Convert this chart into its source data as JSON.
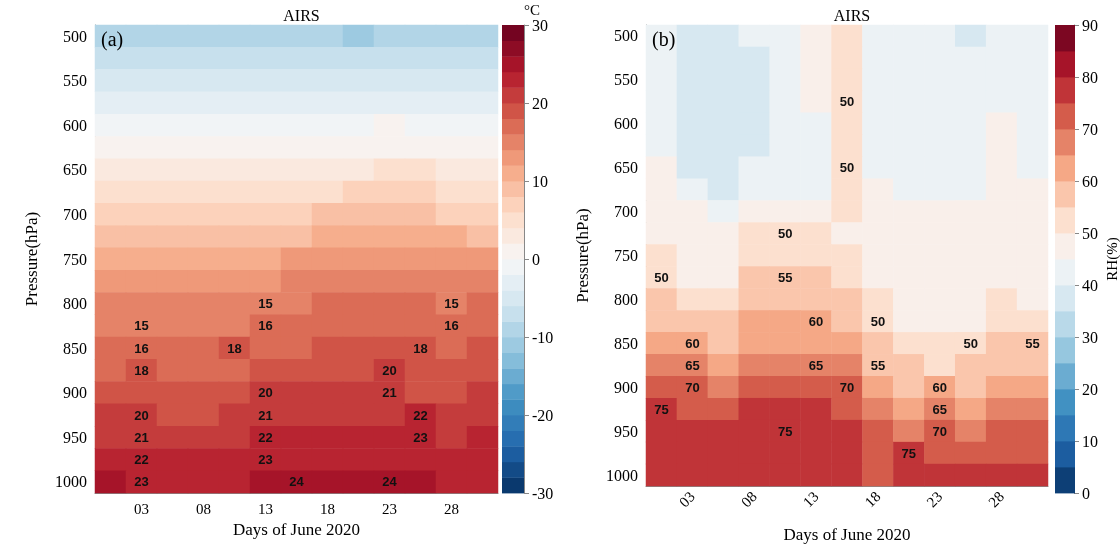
{
  "chart_data": [
    {
      "type": "heatmap",
      "title": "AIRS",
      "xlabel": "Days of June 2020",
      "ylabel": "Pressure(hPa)",
      "clabel": "°C",
      "annotations": [
        "(a)"
      ],
      "categories": [
        null,
        "03",
        null,
        "08",
        null,
        "13",
        null,
        "18",
        null,
        "23",
        null,
        "28",
        null
      ],
      "y_categories": [
        "500",
        null,
        "550",
        null,
        "600",
        null,
        "650",
        null,
        "700",
        null,
        "750",
        null,
        "800",
        null,
        "850",
        null,
        "900",
        null,
        "950",
        null,
        "1000"
      ],
      "clim": [
        -30,
        30
      ],
      "cticks": [
        -30,
        -20,
        -10,
        0,
        10,
        20,
        30
      ],
      "cells": [
        [
          -9,
          -9,
          -9,
          -9,
          -10,
          -10,
          -10,
          -10,
          -11,
          -10,
          -10,
          -9,
          -9
        ],
        [
          -7,
          -7,
          -7,
          -7,
          -8,
          -8,
          -8,
          -8,
          -8,
          -8,
          -7,
          -7,
          -7
        ],
        [
          -5,
          -5,
          -5,
          -5,
          -5,
          -6,
          -6,
          -6,
          -6,
          -5,
          -5,
          -5,
          -5
        ],
        [
          -3,
          -3,
          -3,
          -3,
          -3,
          -3,
          -3,
          -3,
          -3,
          -3,
          -3,
          -3,
          -3
        ],
        [
          -1,
          -1,
          -1,
          -1,
          -1,
          -1,
          -1,
          -1,
          -1,
          0,
          -1,
          -1,
          -1
        ],
        [
          1,
          1,
          1,
          1,
          1,
          1,
          1,
          1,
          1,
          1,
          1,
          1,
          1
        ],
        [
          3,
          3,
          3,
          3,
          3,
          3,
          3,
          3,
          3,
          4,
          4,
          3,
          3
        ],
        [
          5,
          5,
          5,
          5,
          5,
          5,
          5,
          5,
          6,
          6,
          6,
          5,
          5
        ],
        [
          7,
          7,
          7,
          7,
          7,
          7,
          7,
          8,
          8,
          8,
          8,
          7,
          7
        ],
        [
          9,
          9,
          9,
          9,
          9,
          9,
          9,
          10,
          10,
          10,
          10,
          10,
          9
        ],
        [
          11,
          11,
          11,
          11,
          11,
          11,
          12,
          12,
          12,
          13,
          12,
          12,
          12
        ],
        [
          13,
          13,
          13,
          13,
          13,
          13,
          14,
          14,
          14,
          15,
          14,
          14,
          14
        ],
        [
          14,
          14,
          14,
          14,
          14,
          15,
          15,
          16,
          16,
          16,
          16,
          15,
          16
        ],
        [
          15,
          15,
          15,
          15,
          15,
          16,
          16,
          17,
          17,
          17,
          16,
          16,
          17
        ],
        [
          16,
          16,
          16,
          16,
          18,
          17,
          17,
          18,
          18,
          18,
          18,
          17,
          18
        ],
        [
          17,
          18,
          17,
          17,
          17,
          18,
          18,
          19,
          19,
          20,
          18,
          18,
          19
        ],
        [
          18,
          18,
          18,
          18,
          19,
          20,
          20,
          20,
          20,
          21,
          19,
          19,
          20
        ],
        [
          20,
          20,
          19,
          19,
          20,
          21,
          21,
          21,
          21,
          21,
          22,
          20,
          21
        ],
        [
          21,
          21,
          21,
          21,
          21,
          22,
          22,
          22,
          22,
          22,
          23,
          21,
          22
        ],
        [
          22,
          22,
          22,
          22,
          22,
          23,
          23,
          23,
          23,
          23,
          23,
          22,
          23
        ],
        [
          24,
          23,
          23,
          23,
          23,
          24,
          24,
          25,
          24,
          24,
          24,
          23,
          23
        ]
      ],
      "cell_labels": [
        [
          null,
          null,
          null,
          null,
          null,
          null,
          null,
          null,
          null,
          null,
          null,
          null,
          null
        ],
        [
          null,
          null,
          null,
          null,
          null,
          null,
          null,
          null,
          null,
          null,
          null,
          null,
          null
        ],
        [
          null,
          null,
          null,
          null,
          null,
          null,
          null,
          null,
          null,
          null,
          null,
          null,
          null
        ],
        [
          null,
          null,
          null,
          null,
          null,
          null,
          null,
          null,
          null,
          null,
          null,
          null,
          null
        ],
        [
          null,
          null,
          null,
          null,
          null,
          null,
          null,
          null,
          null,
          null,
          null,
          null,
          null
        ],
        [
          null,
          null,
          null,
          null,
          null,
          null,
          null,
          null,
          null,
          null,
          null,
          null,
          null
        ],
        [
          null,
          null,
          null,
          null,
          null,
          null,
          null,
          null,
          null,
          null,
          null,
          null,
          null
        ],
        [
          null,
          null,
          null,
          null,
          null,
          null,
          null,
          null,
          null,
          null,
          null,
          null,
          null
        ],
        [
          null,
          null,
          null,
          null,
          null,
          null,
          null,
          null,
          null,
          null,
          null,
          null,
          null
        ],
        [
          null,
          null,
          null,
          null,
          null,
          null,
          null,
          null,
          null,
          null,
          null,
          null,
          null
        ],
        [
          null,
          null,
          null,
          null,
          null,
          null,
          null,
          null,
          null,
          null,
          null,
          null,
          null
        ],
        [
          null,
          null,
          null,
          null,
          null,
          null,
          null,
          null,
          null,
          null,
          null,
          null,
          null
        ],
        [
          null,
          null,
          null,
          null,
          null,
          "15",
          null,
          null,
          null,
          null,
          null,
          "15",
          null
        ],
        [
          null,
          "15",
          null,
          null,
          null,
          "16",
          null,
          null,
          null,
          null,
          null,
          "16",
          null
        ],
        [
          null,
          "16",
          null,
          null,
          "18",
          null,
          null,
          null,
          null,
          null,
          "18",
          null,
          null
        ],
        [
          null,
          "18",
          null,
          null,
          null,
          null,
          null,
          null,
          null,
          "20",
          null,
          null,
          null
        ],
        [
          null,
          null,
          null,
          null,
          null,
          "20",
          null,
          null,
          null,
          "21",
          null,
          null,
          null
        ],
        [
          null,
          "20",
          null,
          null,
          null,
          "21",
          null,
          null,
          null,
          null,
          "22",
          null,
          null
        ],
        [
          null,
          "21",
          null,
          null,
          null,
          "22",
          null,
          null,
          null,
          null,
          "23",
          null,
          null
        ],
        [
          null,
          "22",
          null,
          null,
          null,
          "23",
          null,
          null,
          null,
          null,
          null,
          null,
          null
        ],
        [
          null,
          "23",
          null,
          null,
          null,
          null,
          "24",
          null,
          null,
          "24",
          null,
          null,
          null
        ]
      ]
    },
    {
      "type": "heatmap",
      "title": "AIRS",
      "xlabel": "Days of June 2020",
      "ylabel": "Pressure(hPa)",
      "clabel": "RH(%)",
      "annotations": [
        "(b)"
      ],
      "categories": [
        null,
        "03",
        null,
        "08",
        null,
        "13",
        null,
        "18",
        null,
        "23",
        null,
        "28",
        null
      ],
      "y_categories": [
        "500",
        null,
        "550",
        null,
        "600",
        null,
        "650",
        null,
        "700",
        null,
        "750",
        null,
        "800",
        null,
        "850",
        null,
        "900",
        null,
        "950",
        null,
        "1000"
      ],
      "clim": [
        0,
        90
      ],
      "cticks": [
        0,
        10,
        20,
        30,
        40,
        50,
        60,
        70,
        80,
        90
      ],
      "cells": [
        [
          40,
          35,
          35,
          40,
          40,
          45,
          50,
          40,
          40,
          40,
          35,
          40,
          40
        ],
        [
          40,
          35,
          35,
          35,
          40,
          45,
          50,
          40,
          40,
          40,
          40,
          40,
          40
        ],
        [
          40,
          35,
          35,
          35,
          40,
          45,
          50,
          40,
          40,
          40,
          40,
          40,
          40
        ],
        [
          40,
          35,
          35,
          35,
          40,
          45,
          50,
          40,
          40,
          40,
          40,
          40,
          40
        ],
        [
          40,
          35,
          35,
          35,
          40,
          40,
          50,
          40,
          40,
          40,
          40,
          45,
          40
        ],
        [
          40,
          35,
          35,
          35,
          40,
          40,
          50,
          40,
          40,
          40,
          40,
          45,
          40
        ],
        [
          45,
          35,
          35,
          40,
          40,
          40,
          50,
          40,
          40,
          40,
          40,
          45,
          40
        ],
        [
          45,
          40,
          35,
          40,
          40,
          40,
          50,
          45,
          40,
          40,
          40,
          45,
          45
        ],
        [
          45,
          45,
          40,
          45,
          45,
          45,
          50,
          45,
          45,
          45,
          45,
          45,
          45
        ],
        [
          45,
          45,
          45,
          50,
          50,
          50,
          45,
          45,
          45,
          45,
          45,
          45,
          45
        ],
        [
          50,
          45,
          45,
          50,
          52,
          52,
          50,
          45,
          45,
          45,
          45,
          45,
          45
        ],
        [
          50,
          48,
          48,
          55,
          55,
          55,
          52,
          47,
          45,
          45,
          45,
          48,
          45
        ],
        [
          55,
          52,
          50,
          57,
          57,
          57,
          55,
          50,
          47,
          47,
          47,
          52,
          48
        ],
        [
          58,
          55,
          55,
          60,
          60,
          60,
          57,
          50,
          48,
          48,
          48,
          52,
          50
        ],
        [
          60,
          60,
          57,
          62,
          62,
          62,
          60,
          55,
          52,
          50,
          50,
          55,
          55
        ],
        [
          65,
          65,
          62,
          67,
          67,
          65,
          65,
          55,
          55,
          53,
          55,
          58,
          57
        ],
        [
          70,
          70,
          67,
          72,
          72,
          72,
          70,
          62,
          58,
          60,
          58,
          62,
          62
        ],
        [
          75,
          72,
          72,
          75,
          75,
          75,
          72,
          67,
          62,
          65,
          63,
          67,
          67
        ],
        [
          75,
          75,
          75,
          77,
          75,
          77,
          75,
          70,
          67,
          70,
          68,
          70,
          70
        ],
        [
          75,
          77,
          77,
          77,
          77,
          77,
          75,
          72,
          75,
          72,
          72,
          72,
          72
        ],
        [
          77,
          77,
          77,
          77,
          77,
          77,
          75,
          72,
          75,
          75,
          77,
          75,
          77
        ]
      ],
      "cell_labels": [
        [
          null,
          null,
          null,
          null,
          null,
          null,
          null,
          null,
          null,
          null,
          null,
          null,
          null
        ],
        [
          null,
          null,
          null,
          null,
          null,
          null,
          null,
          null,
          null,
          null,
          null,
          null,
          null
        ],
        [
          null,
          null,
          null,
          null,
          null,
          null,
          null,
          null,
          null,
          null,
          null,
          null,
          null
        ],
        [
          null,
          null,
          null,
          null,
          null,
          null,
          "50",
          null,
          null,
          null,
          null,
          null,
          null
        ],
        [
          null,
          null,
          null,
          null,
          null,
          null,
          null,
          null,
          null,
          null,
          null,
          null,
          null
        ],
        [
          null,
          null,
          null,
          null,
          null,
          null,
          null,
          null,
          null,
          null,
          null,
          null,
          null
        ],
        [
          null,
          null,
          null,
          null,
          null,
          null,
          "50",
          null,
          null,
          null,
          null,
          null,
          null
        ],
        [
          null,
          null,
          null,
          null,
          null,
          null,
          null,
          null,
          null,
          null,
          null,
          null,
          null
        ],
        [
          null,
          null,
          null,
          null,
          null,
          null,
          null,
          null,
          null,
          null,
          null,
          null,
          null
        ],
        [
          null,
          null,
          null,
          null,
          "50",
          null,
          null,
          null,
          null,
          null,
          null,
          null,
          null
        ],
        [
          null,
          null,
          null,
          null,
          null,
          null,
          null,
          null,
          null,
          null,
          null,
          null,
          null
        ],
        [
          "50",
          null,
          null,
          null,
          "55",
          null,
          null,
          null,
          null,
          null,
          null,
          null,
          null
        ],
        [
          null,
          null,
          null,
          null,
          null,
          null,
          null,
          null,
          null,
          null,
          null,
          null,
          null
        ],
        [
          null,
          null,
          null,
          null,
          null,
          "60",
          null,
          "50",
          null,
          null,
          null,
          null,
          null
        ],
        [
          null,
          "60",
          null,
          null,
          null,
          null,
          null,
          null,
          null,
          null,
          "50",
          null,
          "55"
        ],
        [
          null,
          "65",
          null,
          null,
          null,
          "65",
          null,
          "55",
          null,
          null,
          null,
          null,
          null
        ],
        [
          null,
          "70",
          null,
          null,
          null,
          null,
          "70",
          null,
          null,
          "60",
          null,
          null,
          null
        ],
        [
          "75",
          null,
          null,
          null,
          null,
          null,
          null,
          null,
          null,
          "65",
          null,
          null,
          null
        ],
        [
          null,
          null,
          null,
          null,
          "75",
          null,
          null,
          null,
          null,
          "70",
          null,
          null,
          null
        ],
        [
          null,
          null,
          null,
          null,
          null,
          null,
          null,
          null,
          "75",
          null,
          null,
          null,
          null
        ],
        [
          null,
          null,
          null,
          null,
          null,
          null,
          null,
          null,
          null,
          null,
          null,
          null,
          null
        ]
      ]
    }
  ]
}
